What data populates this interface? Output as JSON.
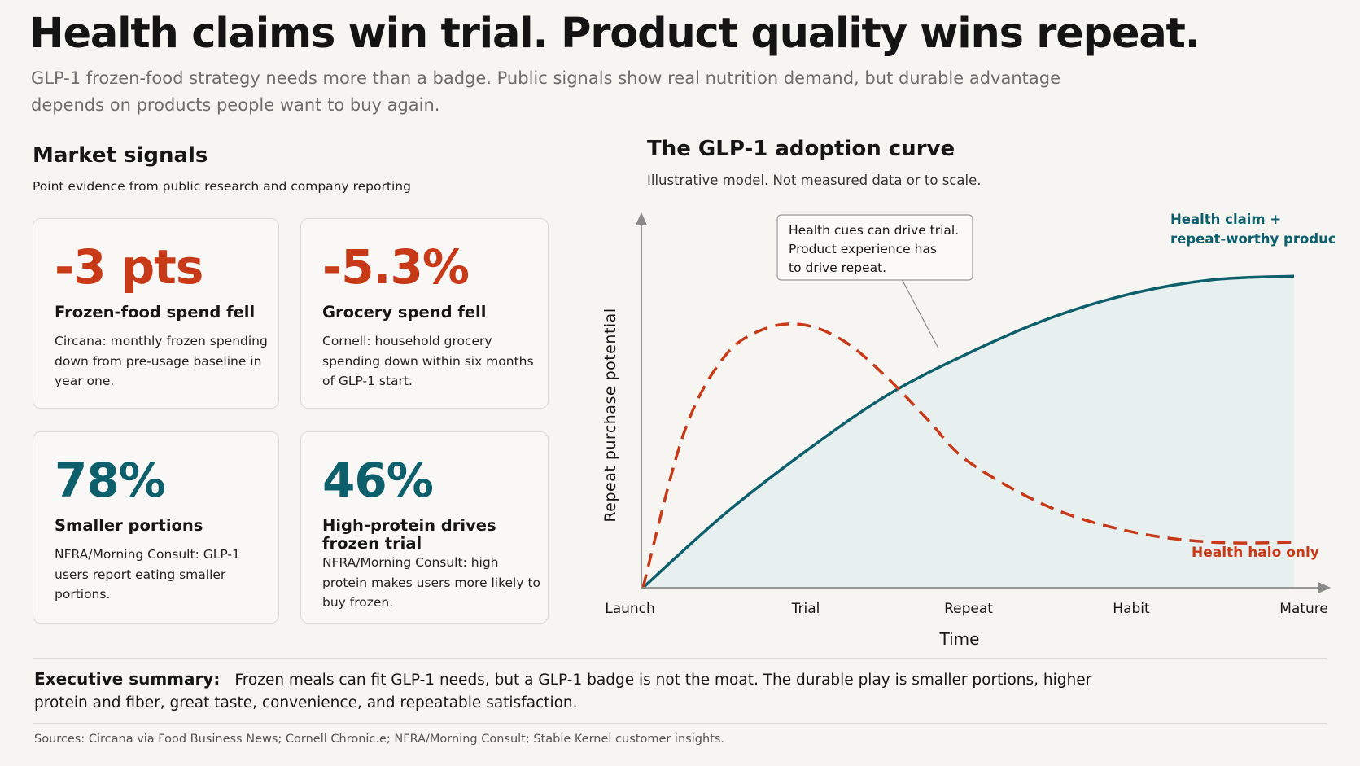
{
  "header": {
    "title": "Health claims win trial. Product quality wins repeat.",
    "subtitle": "GLP-1 frozen-food strategy needs more than a badge. Public signals show real nutrition demand, but durable advantage depends on products people want to buy again."
  },
  "market_signals": {
    "title": "Market signals",
    "subtitle": "Point evidence from public research and company reporting",
    "cards": [
      {
        "value": "-3 pts",
        "label": "Frozen-food spend fell",
        "desc": "Circana: monthly frozen spending down from pre-usage baseline in year one.",
        "color": "#c83a17"
      },
      {
        "value": "-5.3%",
        "label": "Grocery spend fell",
        "desc": "Cornell: household grocery spending down within six months of GLP-1 start.",
        "color": "#c83a17"
      },
      {
        "value": "78%",
        "label": "Smaller portions",
        "desc": "NFRA/Morning Consult: GLP-1 users report eating smaller portions.",
        "color": "#0e5f6c"
      },
      {
        "value": "46%",
        "label": "High-protein drives frozen trial",
        "desc": "NFRA/Morning Consult: high protein makes users more likely to buy frozen.",
        "color": "#0e5f6c"
      }
    ]
  },
  "chart": {
    "title": "The GLP-1 adoption curve",
    "subtitle": "Illustrative model. Not measured data or to scale.",
    "callout_lines": [
      "Health cues can drive trial.",
      "Product experience has",
      "to drive repeat."
    ],
    "series_label_quality_lines": [
      "Health claim +",
      "repeat-worthy product"
    ],
    "series_label_halo": "Health halo only"
  },
  "chart_data": {
    "type": "line",
    "title": "The GLP-1 adoption curve",
    "xlabel": "Time",
    "ylabel": "Repeat purchase potential",
    "categories": [
      "Launch",
      "Trial",
      "Repeat",
      "Habit",
      "Mature"
    ],
    "x_range": [
      0,
      4
    ],
    "ylim": [
      0,
      100
    ],
    "grid": false,
    "series": [
      {
        "name": "Health claim + repeat-worthy product",
        "style": "solid-filled",
        "color": "#0e5f6c",
        "x": [
          0,
          0.5,
          1,
          1.5,
          2,
          2.5,
          3,
          3.5,
          4
        ],
        "y": [
          0,
          21,
          39,
          55,
          67,
          77,
          84,
          88,
          89
        ]
      },
      {
        "name": "Health halo only",
        "style": "dashed",
        "color": "#c83a17",
        "x": [
          0,
          0.25,
          0.5,
          0.75,
          1.0,
          1.25,
          1.5,
          1.75,
          2.0,
          2.5,
          3.0,
          3.5,
          4.0
        ],
        "y": [
          0,
          44,
          66,
          74,
          75,
          70,
          60,
          48,
          36,
          23,
          16,
          13,
          13
        ]
      }
    ]
  },
  "summary": {
    "lead": "Executive summary:",
    "text": "Frozen meals can fit GLP-1 needs, but a GLP-1 badge is not the moat. The durable play is smaller portions, higher protein and fiber, great taste, convenience, and repeatable satisfaction."
  },
  "sources": "Sources: Circana via Food Business News; Cornell Chronic.e; NFRA/Morning Consult; Stable Kernel customer insights."
}
